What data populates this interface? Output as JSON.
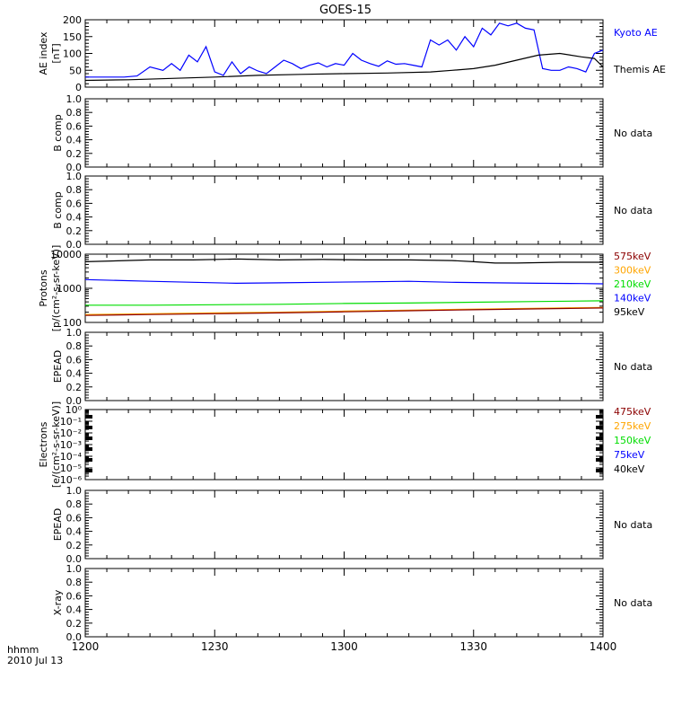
{
  "title": "GOES-15",
  "x_axis": {
    "ticks": [
      "1200",
      "1230",
      "1300",
      "1330",
      "1400"
    ],
    "corner_label_1": "hhmm",
    "corner_label_2": "2010 Jul 13"
  },
  "colors": {
    "black": "#000000",
    "blue": "#0000ff",
    "darkred": "#8b0000",
    "orange": "#ffa500",
    "green": "#00dd00",
    "axis": "#000000"
  },
  "chart_data": [
    {
      "id": "ae",
      "type": "line",
      "ylabel": [
        "AE index",
        "[nT]"
      ],
      "ylim": [
        0,
        200
      ],
      "yticks": [
        "0",
        "50",
        "100",
        "150",
        "200"
      ],
      "x_range": [
        0,
        120
      ],
      "x_unit": "minutes after 1200",
      "legend": [
        {
          "name": "Kyoto AE",
          "color": "#0000ff"
        },
        {
          "name": "Themis AE",
          "color": "#000000"
        }
      ],
      "series": [
        {
          "name": "Kyoto AE",
          "color": "#0000ff",
          "x": [
            0,
            3,
            6,
            9,
            12,
            15,
            18,
            20,
            22,
            24,
            26,
            28,
            30,
            32,
            34,
            36,
            38,
            40,
            42,
            44,
            46,
            48,
            50,
            52,
            54,
            56,
            58,
            60,
            62,
            64,
            66,
            68,
            70,
            72,
            74,
            76,
            78,
            80,
            82,
            84,
            86,
            88,
            90,
            92,
            94,
            96,
            98,
            100,
            102,
            104,
            106,
            108,
            110,
            112,
            114,
            116,
            118,
            120
          ],
          "y": [
            30,
            30,
            30,
            30,
            33,
            60,
            50,
            70,
            50,
            95,
            75,
            120,
            45,
            35,
            75,
            40,
            60,
            48,
            40,
            60,
            80,
            70,
            55,
            65,
            72,
            60,
            70,
            65,
            100,
            80,
            70,
            62,
            78,
            68,
            70,
            65,
            60,
            140,
            125,
            140,
            110,
            150,
            120,
            175,
            155,
            190,
            182,
            190,
            175,
            170,
            55,
            50,
            50,
            60,
            55,
            45,
            100,
            110
          ]
        },
        {
          "name": "Themis AE",
          "color": "#000000",
          "x": [
            0,
            10,
            20,
            30,
            40,
            50,
            60,
            70,
            80,
            85,
            90,
            95,
            100,
            105,
            110,
            115,
            118,
            120
          ],
          "y": [
            20,
            22,
            26,
            30,
            35,
            38,
            40,
            42,
            45,
            50,
            55,
            65,
            80,
            95,
            100,
            90,
            85,
            60
          ]
        }
      ]
    },
    {
      "id": "bcomp1",
      "type": "line",
      "ylabel": [
        "B comp"
      ],
      "ylim": [
        0,
        1
      ],
      "yticks": [
        "0.0",
        "0.2",
        "0.4",
        "0.6",
        "0.8",
        "1.0"
      ],
      "note": "No data"
    },
    {
      "id": "bcomp2",
      "type": "line",
      "ylabel": [
        "B comp"
      ],
      "ylim": [
        0,
        1
      ],
      "yticks": [
        "0.0",
        "0.2",
        "0.4",
        "0.6",
        "0.8",
        "1.0"
      ],
      "note": "No data"
    },
    {
      "id": "protons",
      "type": "line",
      "yscale": "log",
      "ylabel": [
        "Protons",
        "[p/(cm²-s-sr-keV)]"
      ],
      "ylim": [
        100,
        10000
      ],
      "yticks": [
        {
          "value": 100,
          "label": "100"
        },
        {
          "value": 1000,
          "label": "1000"
        },
        {
          "value": 10000,
          "label": "10000"
        }
      ],
      "legend": [
        {
          "name": "575keV",
          "color": "#8b0000"
        },
        {
          "name": "300keV",
          "color": "#ffa500"
        },
        {
          "name": "210keV",
          "color": "#00dd00"
        },
        {
          "name": "140keV",
          "color": "#0000ff"
        },
        {
          "name": "95keV",
          "color": "#000000"
        }
      ],
      "series": [
        {
          "name": "95keV",
          "color": "#000000",
          "x": [
            0,
            15,
            25,
            35,
            45,
            55,
            65,
            75,
            85,
            90,
            95,
            100,
            110,
            120
          ],
          "y": [
            6000,
            6800,
            6800,
            7200,
            6800,
            7000,
            6800,
            6800,
            6500,
            6000,
            5500,
            5500,
            5800,
            5800
          ]
        },
        {
          "name": "140keV",
          "color": "#0000ff",
          "x": [
            0,
            15,
            25,
            35,
            45,
            55,
            65,
            75,
            85,
            95,
            105,
            115,
            120
          ],
          "y": [
            1800,
            1600,
            1500,
            1400,
            1450,
            1500,
            1550,
            1600,
            1500,
            1450,
            1400,
            1380,
            1350
          ]
        },
        {
          "name": "210keV",
          "color": "#00dd00",
          "x": [
            0,
            15,
            30,
            45,
            60,
            75,
            90,
            105,
            120
          ],
          "y": [
            320,
            320,
            330,
            340,
            360,
            370,
            390,
            410,
            430
          ]
        },
        {
          "name": "300keV",
          "color": "#ffa500",
          "x": [
            0,
            15,
            30,
            45,
            60,
            75,
            90,
            105,
            120
          ],
          "y": [
            170,
            180,
            190,
            200,
            215,
            230,
            245,
            260,
            275
          ]
        },
        {
          "name": "575keV",
          "color": "#8b0000",
          "x": [
            0,
            15,
            30,
            45,
            60,
            75,
            90,
            105,
            120
          ],
          "y": [
            160,
            170,
            180,
            190,
            205,
            220,
            235,
            250,
            265
          ]
        }
      ]
    },
    {
      "id": "epead1",
      "type": "line",
      "ylabel": [
        "EPEAD"
      ],
      "ylim": [
        0,
        1
      ],
      "yticks": [
        "0.0",
        "0.2",
        "0.4",
        "0.6",
        "0.8",
        "1.0"
      ],
      "note": "No data"
    },
    {
      "id": "electrons",
      "type": "line",
      "yscale": "log",
      "ylabel": [
        "Electrons",
        "[e/(cm²-s-sr-keV)]"
      ],
      "ylim": [
        1e-06,
        1
      ],
      "yticks": [
        {
          "value": 1,
          "label": "10⁰"
        },
        {
          "value": 0.1,
          "label": "10⁻¹"
        },
        {
          "value": 0.01,
          "label": "10⁻²"
        },
        {
          "value": 0.001,
          "label": "10⁻³"
        },
        {
          "value": 0.0001,
          "label": "10⁻⁴"
        },
        {
          "value": 1e-05,
          "label": "10⁻⁵"
        },
        {
          "value": 1e-06,
          "label": "10⁻⁶"
        }
      ],
      "legend": [
        {
          "name": "475keV",
          "color": "#8b0000"
        },
        {
          "name": "275keV",
          "color": "#ffa500"
        },
        {
          "name": "150keV",
          "color": "#00dd00"
        },
        {
          "name": "75keV",
          "color": "#0000ff"
        },
        {
          "name": "40keV",
          "color": "#000000"
        }
      ]
    },
    {
      "id": "epead2",
      "type": "line",
      "ylabel": [
        "EPEAD"
      ],
      "ylim": [
        0,
        1
      ],
      "yticks": [
        "0.0",
        "0.2",
        "0.4",
        "0.6",
        "0.8",
        "1.0"
      ],
      "note": "No data"
    },
    {
      "id": "xray",
      "type": "line",
      "ylabel": [
        "X-ray"
      ],
      "ylim": [
        0,
        1
      ],
      "yticks": [
        "0.0",
        "0.2",
        "0.4",
        "0.6",
        "0.8",
        "1.0"
      ],
      "note": "No data"
    }
  ]
}
